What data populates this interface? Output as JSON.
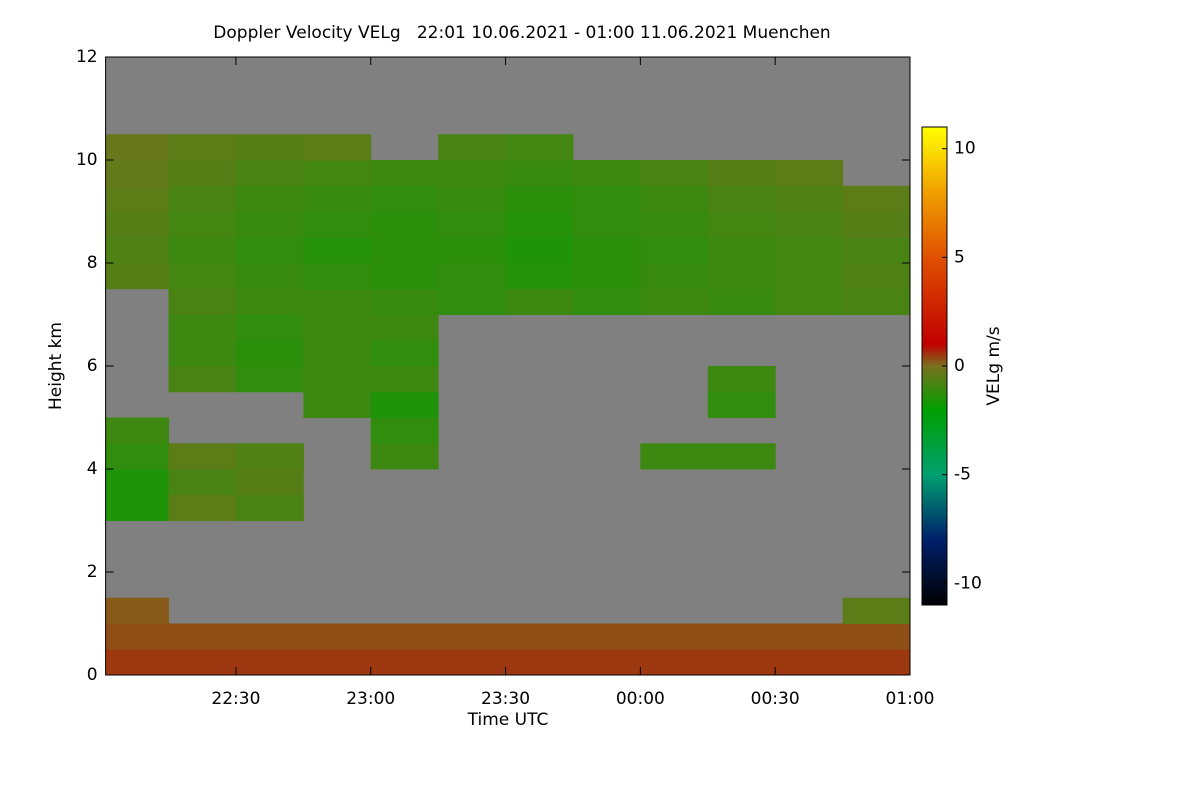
{
  "chart_data": {
    "type": "heatmap",
    "title": "Doppler Velocity VELg   22:01 10.06.2021 - 01:00 11.06.2021 Muenchen",
    "xlabel": "Time UTC",
    "ylabel": "Height km",
    "colorbar_label": "VELg m/s",
    "xlim": [
      1,
      180
    ],
    "ylim": [
      0,
      12
    ],
    "xticks": [
      {
        "value": 30,
        "label": "22:30"
      },
      {
        "value": 60,
        "label": "23:00"
      },
      {
        "value": 90,
        "label": "23:30"
      },
      {
        "value": 120,
        "label": "00:00"
      },
      {
        "value": 150,
        "label": "00:30"
      },
      {
        "value": 180,
        "label": "01:00"
      }
    ],
    "yticks": [
      0,
      2,
      4,
      6,
      8,
      10,
      12
    ],
    "clim": [
      -11,
      11
    ],
    "cticks": [
      -10,
      -5,
      0,
      5,
      10
    ],
    "colorscale": [
      [
        -11,
        "#000000"
      ],
      [
        -8,
        "#00206a"
      ],
      [
        -5,
        "#00a070"
      ],
      [
        -2,
        "#00a000"
      ],
      [
        0,
        "#7a7020"
      ],
      [
        1,
        "#c00000"
      ],
      [
        5,
        "#e05000"
      ],
      [
        8,
        "#f0a000"
      ],
      [
        11,
        "#ffff00"
      ]
    ],
    "background": "#808080",
    "x_edges": [
      1,
      15,
      30,
      45,
      60,
      75,
      90,
      105,
      120,
      135,
      150,
      165,
      180
    ],
    "y_edges": [
      0,
      0.5,
      1,
      1.5,
      2,
      2.5,
      3,
      3.5,
      4,
      4.5,
      5,
      5.5,
      6,
      6.5,
      7,
      7.5,
      8,
      8.5,
      9,
      9.5,
      10,
      10.5,
      11,
      11.5,
      12
    ],
    "values": [
      [
        0.5,
        0.5,
        0.5,
        0.5,
        0.5,
        0.5,
        0.5,
        0.5,
        0.5,
        0.5,
        0.5,
        0.5
      ],
      [
        0.3,
        0.3,
        0.3,
        0.3,
        0.3,
        0.3,
        0.3,
        0.3,
        0.3,
        0.3,
        0.3,
        0.3
      ],
      [
        0.2,
        null,
        null,
        null,
        null,
        null,
        null,
        null,
        null,
        null,
        null,
        -0.5
      ],
      [
        null,
        null,
        null,
        null,
        null,
        null,
        null,
        null,
        null,
        null,
        null,
        null
      ],
      [
        null,
        null,
        null,
        null,
        null,
        null,
        null,
        null,
        null,
        null,
        null,
        null
      ],
      [
        null,
        null,
        null,
        null,
        null,
        null,
        null,
        null,
        null,
        null,
        null,
        null
      ],
      [
        -1.5,
        -0.5,
        -0.8,
        null,
        null,
        null,
        null,
        null,
        null,
        null,
        null,
        null
      ],
      [
        -1.5,
        -0.8,
        -0.6,
        null,
        null,
        null,
        null,
        null,
        null,
        null,
        null,
        null
      ],
      [
        -1.2,
        -0.5,
        -0.7,
        null,
        -1.0,
        null,
        null,
        null,
        -1.0,
        -1.0,
        null,
        null
      ],
      [
        -1.0,
        null,
        null,
        null,
        -1.2,
        null,
        null,
        null,
        null,
        null,
        null,
        null
      ],
      [
        null,
        null,
        null,
        -1.0,
        -1.5,
        null,
        null,
        null,
        null,
        -1.2,
        null,
        null
      ],
      [
        null,
        -0.8,
        -1.2,
        -1.0,
        -1.0,
        null,
        null,
        null,
        null,
        -1.0,
        null,
        null
      ],
      [
        null,
        -1.0,
        -1.3,
        -1.0,
        -1.2,
        null,
        null,
        null,
        null,
        null,
        null,
        null
      ],
      [
        null,
        -1.0,
        -1.2,
        -1.0,
        -1.0,
        null,
        null,
        null,
        null,
        null,
        null,
        null
      ],
      [
        null,
        -0.8,
        -1.0,
        -1.0,
        -1.1,
        -1.2,
        -1.0,
        -1.2,
        -1.0,
        -1.1,
        -0.9,
        -0.8
      ],
      [
        -0.6,
        -0.9,
        -1.1,
        -1.2,
        -1.3,
        -1.2,
        -1.4,
        -1.3,
        -1.1,
        -1.0,
        -0.9,
        -0.7
      ],
      [
        -0.7,
        -1.0,
        -1.2,
        -1.4,
        -1.3,
        -1.3,
        -1.5,
        -1.3,
        -1.2,
        -1.0,
        -0.9,
        -0.8
      ],
      [
        -0.6,
        -0.9,
        -1.1,
        -1.2,
        -1.3,
        -1.2,
        -1.4,
        -1.2,
        -1.1,
        -0.9,
        -0.8,
        -0.6
      ],
      [
        -0.5,
        -0.8,
        -1.0,
        -1.1,
        -1.2,
        -1.1,
        -1.3,
        -1.2,
        -1.0,
        -0.8,
        -0.7,
        -0.5
      ],
      [
        -0.4,
        -0.6,
        -0.8,
        -0.9,
        -1.0,
        -1.0,
        -1.1,
        -1.0,
        -0.8,
        -0.6,
        -0.5,
        null
      ],
      [
        -0.3,
        -0.5,
        -0.6,
        -0.5,
        null,
        -0.8,
        -0.9,
        null,
        null,
        null,
        null,
        null
      ],
      [
        null,
        null,
        null,
        null,
        null,
        null,
        null,
        null,
        null,
        null,
        null,
        null
      ],
      [
        null,
        null,
        null,
        null,
        null,
        null,
        null,
        null,
        null,
        null,
        null,
        null
      ],
      [
        null,
        null,
        null,
        null,
        null,
        null,
        null,
        null,
        null,
        null,
        null,
        null
      ]
    ]
  }
}
